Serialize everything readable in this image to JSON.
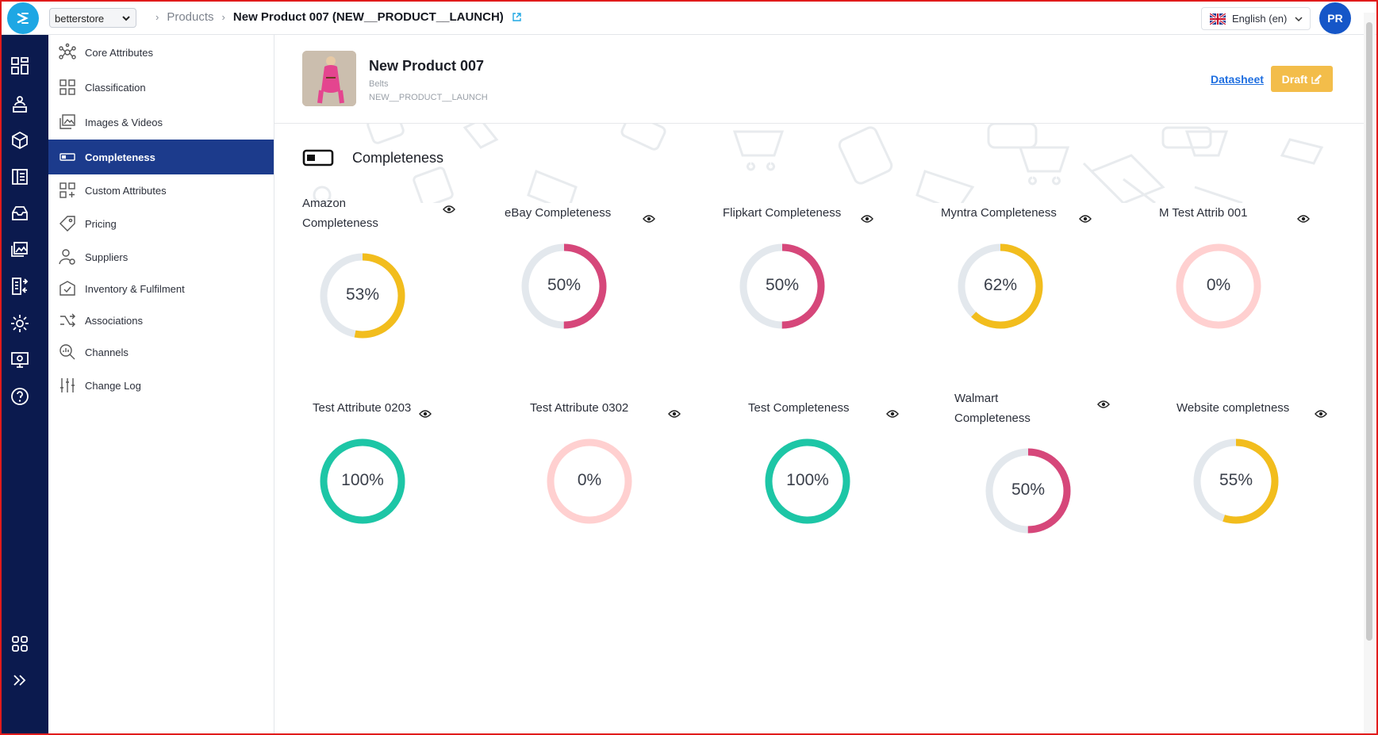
{
  "header": {
    "store": "betterstore",
    "breadcrumb_products": "Products",
    "breadcrumb_current": "New Product 007 (NEW__PRODUCT__LAUNCH)",
    "language": "English (en)",
    "avatar_initials": "PR"
  },
  "menu": {
    "items": [
      {
        "label": "Core Attributes",
        "icon": "nodes-icon"
      },
      {
        "label": "Classification",
        "icon": "grid-icon"
      },
      {
        "label": "Images & Videos",
        "icon": "images-icon"
      },
      {
        "label": "Completeness",
        "icon": "progress-icon",
        "active": true
      },
      {
        "label": "Custom Attributes",
        "icon": "grid-plus-icon"
      },
      {
        "label": "Pricing",
        "icon": "price-tag-icon"
      },
      {
        "label": "Suppliers",
        "icon": "supplier-icon"
      },
      {
        "label": "Inventory & Fulfilment",
        "icon": "inventory-icon"
      },
      {
        "label": "Associations",
        "icon": "associations-icon"
      },
      {
        "label": "Channels",
        "icon": "channels-icon"
      },
      {
        "label": "Change Log",
        "icon": "changelog-icon"
      }
    ]
  },
  "product": {
    "name": "New Product 007",
    "category": "Belts",
    "code": "NEW__PRODUCT__LAUNCH",
    "datasheet_label": "Datasheet",
    "status_label": "Draft"
  },
  "section": {
    "title": "Completeness"
  },
  "completeness": [
    {
      "title": "Amazon Completeness",
      "value": 53,
      "label": "53%",
      "color": "#f2bd1d"
    },
    {
      "title": "eBay Completeness",
      "value": 50,
      "label": "50%",
      "color": "#d6477a"
    },
    {
      "title": "Flipkart Completeness",
      "value": 50,
      "label": "50%",
      "color": "#d6477a"
    },
    {
      "title": "Myntra Completeness",
      "value": 62,
      "label": "62%",
      "color": "#f2bd1d"
    },
    {
      "title": "M Test Attrib 001",
      "value": 0,
      "label": "0%",
      "color": "#ffd0d0"
    },
    {
      "title": "Test Attribute 0203",
      "value": 100,
      "label": "100%",
      "color": "#1dc6a6"
    },
    {
      "title": "Test Attribute 0302",
      "value": 0,
      "label": "0%",
      "color": "#ffd0d0"
    },
    {
      "title": "Test Completeness",
      "value": 100,
      "label": "100%",
      "color": "#1dc6a6"
    },
    {
      "title": "Walmart Completeness",
      "value": 50,
      "label": "50%",
      "color": "#d6477a"
    },
    {
      "title": "Website completness",
      "value": 55,
      "label": "55%",
      "color": "#f2bd1d"
    }
  ],
  "colors": {
    "track": "#e3e8ed",
    "accent": "#1c3b8c",
    "rail": "#0b1a4e"
  }
}
